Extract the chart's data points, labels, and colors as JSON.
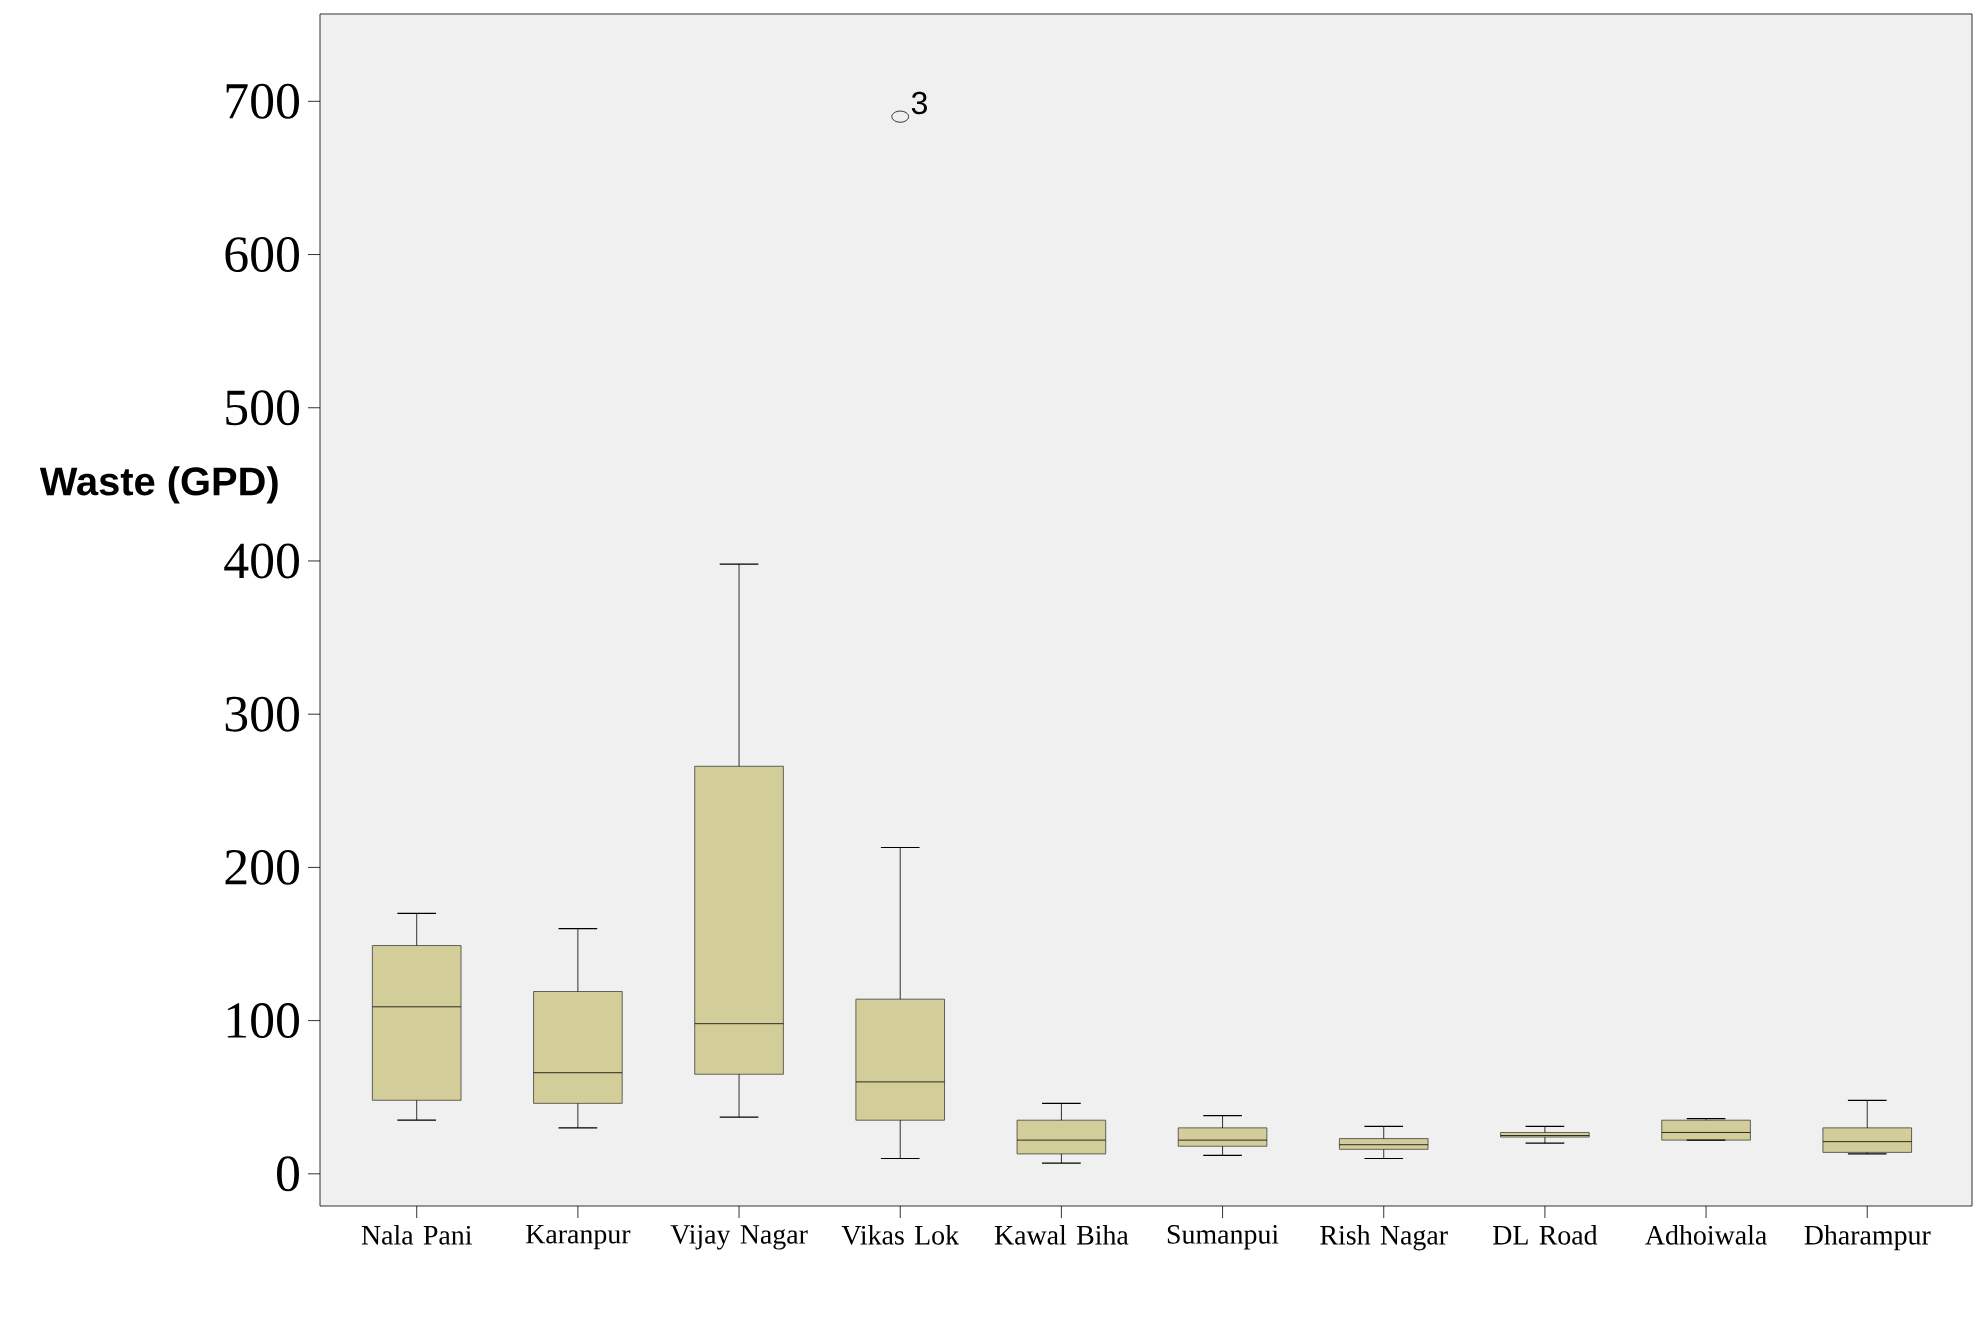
{
  "chart_data": {
    "type": "box",
    "ylabel": "**Waste (GPD)**",
    "color": "#d3ce99",
    "categories": [
      "Nala Pani",
      "Karanpur",
      "Vijay Nagar",
      "Vikas Lok",
      "Kawal Biha",
      "Sumanpui",
      "Rish Nagar",
      "DL Road",
      "Adhoiwala",
      "Dharampur"
    ],
    "boxes": [
      {
        "low": 35,
        "q1": 48,
        "median": 109,
        "q3": 149,
        "high": 170
      },
      {
        "low": 30,
        "q1": 46,
        "median": 66,
        "q3": 119,
        "high": 160
      },
      {
        "low": 37,
        "q1": 65,
        "median": 98,
        "q3": 266,
        "high": 398
      },
      {
        "low": 10,
        "q1": 35,
        "median": 60,
        "q3": 114,
        "high": 213,
        "outliers": [
          690
        ]
      },
      {
        "low": 7,
        "q1": 13,
        "median": 22,
        "q3": 35,
        "high": 46
      },
      {
        "low": 12,
        "q1": 18,
        "median": 22,
        "q3": 30,
        "high": 38
      },
      {
        "low": 10,
        "q1": 16,
        "median": 19,
        "q3": 23,
        "high": 31
      },
      {
        "low": 20,
        "q1": 24,
        "median": 25,
        "q3": 27,
        "high": 31
      },
      {
        "low": 22,
        "q1": 22,
        "median": 27,
        "q3": 35,
        "high": 36
      },
      {
        "low": 13,
        "q1": 14,
        "median": 21,
        "q3": 30,
        "high": 48
      }
    ],
    "ylim": [
      -21,
      757
    ],
    "yticks": [
      0,
      100,
      200,
      300,
      400,
      500,
      600,
      700
    ],
    "annotations": [
      "3"
    ]
  }
}
